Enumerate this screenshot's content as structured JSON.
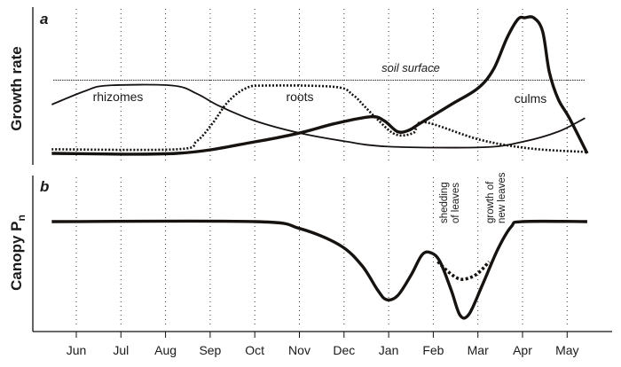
{
  "chart_data": {
    "type": "line",
    "x_unit": "month index (0 = Jun)",
    "months": [
      "Jun",
      "Jul",
      "Aug",
      "Sep",
      "Oct",
      "Nov",
      "Dec",
      "Jan",
      "Feb",
      "Mar",
      "Apr",
      "May"
    ],
    "grid": "vertical dotted at each month",
    "panels": [
      {
        "letter": "a",
        "ylabel": "Growth rate",
        "reference_line": {
          "label": "soil surface",
          "value": 0.54
        },
        "series": [
          {
            "name": "rhizomes",
            "style": "thin-solid",
            "points": [
              [
                -0.55,
                0.36
              ],
              [
                0.2,
                0.46
              ],
              [
                0.7,
                0.5
              ],
              [
                2.15,
                0.5
              ],
              [
                2.7,
                0.44
              ],
              [
                3.2,
                0.35
              ],
              [
                4.0,
                0.24
              ],
              [
                5.0,
                0.15
              ],
              [
                6.0,
                0.09
              ],
              [
                7.0,
                0.05
              ],
              [
                9.1,
                0.045
              ],
              [
                10.0,
                0.085
              ],
              [
                10.8,
                0.16
              ],
              [
                11.4,
                0.26
              ]
            ]
          },
          {
            "name": "roots",
            "style": "dotted",
            "points": [
              [
                -0.55,
                0.03
              ],
              [
                2.25,
                0.03
              ],
              [
                2.7,
                0.09
              ],
              [
                3.05,
                0.22
              ],
              [
                3.4,
                0.38
              ],
              [
                3.8,
                0.48
              ],
              [
                4.25,
                0.5
              ],
              [
                5.8,
                0.49
              ],
              [
                6.2,
                0.43
              ],
              [
                6.45,
                0.35
              ],
              [
                6.75,
                0.25
              ],
              [
                7.15,
                0.14
              ],
              [
                7.55,
                0.15
              ],
              [
                7.8,
                0.23
              ],
              [
                9.05,
                0.1
              ],
              [
                10.2,
                0.035
              ],
              [
                11.45,
                0.01
              ]
            ]
          },
          {
            "name": "culms",
            "style": "thick-solid",
            "points": [
              [
                -0.55,
                0.0
              ],
              [
                2.25,
                0.0
              ],
              [
                4.0,
                0.085
              ],
              [
                5.0,
                0.15
              ],
              [
                5.8,
                0.22
              ],
              [
                6.6,
                0.27
              ],
              [
                6.9,
                0.24
              ],
              [
                7.2,
                0.16
              ],
              [
                7.45,
                0.17
              ],
              [
                7.7,
                0.22
              ],
              [
                8.4,
                0.36
              ],
              [
                9.0,
                0.48
              ],
              [
                9.35,
                0.62
              ],
              [
                9.65,
                0.85
              ],
              [
                9.9,
                0.99
              ],
              [
                10.05,
                1.0
              ],
              [
                10.25,
                1.0
              ],
              [
                10.45,
                0.9
              ],
              [
                10.6,
                0.6
              ],
              [
                10.8,
                0.4
              ],
              [
                11.05,
                0.26
              ],
              [
                11.45,
                0.0
              ]
            ]
          }
        ]
      },
      {
        "letter": "b",
        "ylabel": "Canopy P",
        "ylabel_sub": "n",
        "annotations": [
          "shedding of leaves",
          "growth of new leaves"
        ],
        "annotation_lines": [
          [
            "shedding",
            "of leaves"
          ],
          [
            "growth of",
            "new leaves"
          ]
        ],
        "series": [
          {
            "name": "canopy Pn",
            "style": "thick-solid",
            "points": [
              [
                -0.55,
                1.0
              ],
              [
                4.0,
                1.0
              ],
              [
                5.0,
                0.93
              ],
              [
                5.9,
                0.76
              ],
              [
                6.4,
                0.55
              ],
              [
                6.75,
                0.3
              ],
              [
                6.95,
                0.2
              ],
              [
                7.2,
                0.24
              ],
              [
                7.5,
                0.45
              ],
              [
                7.75,
                0.66
              ],
              [
                7.95,
                0.68
              ],
              [
                8.15,
                0.59
              ],
              [
                8.4,
                0.3
              ],
              [
                8.6,
                0.04
              ],
              [
                8.8,
                0.05
              ],
              [
                9.1,
                0.35
              ],
              [
                9.45,
                0.72
              ],
              [
                9.75,
                0.95
              ],
              [
                10.0,
                1.0
              ],
              [
                11.45,
                1.0
              ]
            ]
          },
          {
            "name": "canopy Pn (alternative)",
            "style": "dashed",
            "points": [
              [
                8.1,
                0.59
              ],
              [
                8.35,
                0.48
              ],
              [
                8.6,
                0.41
              ],
              [
                8.85,
                0.43
              ],
              [
                9.05,
                0.49
              ],
              [
                9.25,
                0.59
              ]
            ]
          }
        ]
      }
    ]
  }
}
